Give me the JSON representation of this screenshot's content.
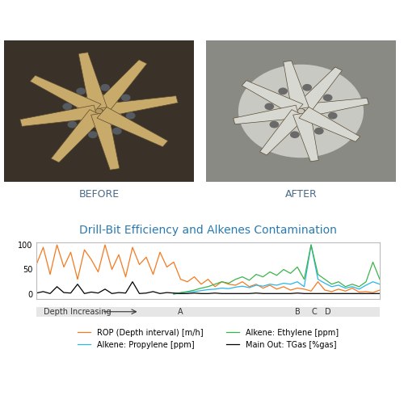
{
  "images": [
    {
      "caption": "BEFORE"
    },
    {
      "caption": "AFTER"
    }
  ],
  "chart_data": {
    "type": "line",
    "title": "Drill-Bit Efficiency and Alkenes Contamination",
    "x": [
      0,
      2,
      4,
      6,
      8,
      10,
      12,
      14,
      16,
      18,
      20,
      22,
      24,
      26,
      28,
      30,
      32,
      34,
      36,
      38,
      40,
      42,
      44,
      46,
      48,
      50,
      52,
      54,
      56,
      58,
      60,
      62,
      64,
      66,
      68,
      70,
      72,
      74,
      76,
      78,
      80,
      82,
      84,
      86,
      88,
      90,
      92,
      94,
      96,
      98,
      100
    ],
    "xlim": [
      0,
      100
    ],
    "ylim": [
      -10,
      105
    ],
    "yticks": [
      0,
      50,
      100
    ],
    "tick_labels": "y",
    "legend": "bottom",
    "annotations": [
      {
        "text": "Depth Increasing",
        "x": 2
      },
      {
        "text": "A",
        "x": 42
      },
      {
        "text": "B",
        "x": 76
      },
      {
        "text": "C",
        "x": 81
      },
      {
        "text": "D",
        "x": 85
      }
    ],
    "series": [
      {
        "name": "ROP (Depth interval) [m/h]",
        "color": "#f47a20",
        "values": [
          60,
          95,
          40,
          100,
          55,
          85,
          30,
          90,
          70,
          45,
          100,
          50,
          80,
          35,
          95,
          60,
          75,
          40,
          85,
          55,
          65,
          30,
          25,
          35,
          20,
          30,
          15,
          25,
          20,
          18,
          25,
          15,
          20,
          12,
          18,
          10,
          15,
          8,
          12,
          10,
          6,
          25,
          8,
          5,
          10,
          6,
          12,
          4,
          5,
          3,
          8
        ]
      },
      {
        "name": "Alkene: Propylene [ppm]",
        "color": "#29b6e8",
        "values": [
          null,
          null,
          null,
          null,
          null,
          null,
          null,
          null,
          null,
          null,
          null,
          null,
          null,
          null,
          null,
          null,
          null,
          null,
          null,
          null,
          0,
          2,
          4,
          5,
          7,
          9,
          10,
          12,
          11,
          14,
          16,
          13,
          18,
          16,
          20,
          18,
          22,
          20,
          25,
          15,
          100,
          30,
          22,
          15,
          18,
          12,
          15,
          10,
          18,
          25,
          20
        ]
      },
      {
        "name": "Alkene: Ethylene [ppm]",
        "color": "#3cb44b",
        "values": [
          null,
          null,
          null,
          null,
          null,
          null,
          null,
          null,
          null,
          null,
          null,
          null,
          null,
          null,
          null,
          null,
          null,
          null,
          null,
          null,
          0,
          3,
          5,
          8,
          12,
          15,
          20,
          25,
          22,
          30,
          35,
          28,
          40,
          35,
          45,
          38,
          50,
          42,
          55,
          30,
          100,
          40,
          30,
          20,
          25,
          15,
          20,
          15,
          25,
          65,
          30
        ]
      },
      {
        "name": "Main Out: TGas [%gas]",
        "color": "#000000",
        "values": [
          2,
          5,
          1,
          15,
          3,
          2,
          20,
          1,
          4,
          2,
          10,
          1,
          3,
          2,
          25,
          1,
          2,
          5,
          1,
          3,
          2,
          1,
          1,
          2,
          1,
          1,
          2,
          1,
          1,
          1,
          1,
          1,
          2,
          1,
          1,
          1,
          1,
          1,
          2,
          1,
          1,
          1,
          1,
          1,
          1,
          1,
          1,
          1,
          1,
          1,
          1
        ]
      }
    ]
  }
}
